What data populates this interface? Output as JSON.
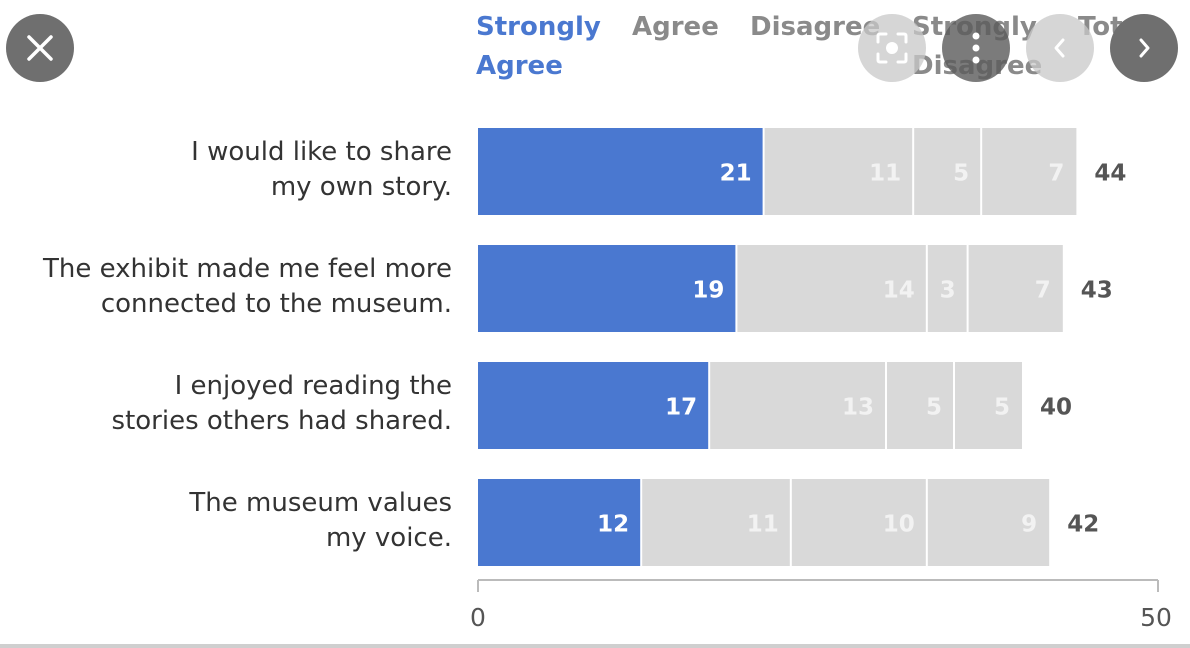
{
  "colors": {
    "strongly_agree": "#4a78d0",
    "other": "#d9d9d9",
    "legend_muted": "#8a8a8a",
    "label_on_blue": "#ffffff",
    "label_on_gray": "#f2f2f2",
    "total": "#555555"
  },
  "overlay": {
    "close_icon": "close-icon",
    "lens_icon": "lens-icon",
    "more_icon": "more-vert-icon",
    "prev_icon": "chevron-left-icon",
    "next_icon": "chevron-right-icon"
  },
  "chart_data": {
    "type": "bar",
    "orientation": "horizontal",
    "stacked": true,
    "categories": [
      "I would like to share\nmy own story.",
      "The exhibit made me feel more\nconnected to the museum.",
      "I enjoyed reading the\nstories others had shared.",
      "The museum values\nmy voice."
    ],
    "series": [
      {
        "name": "Strongly\nAgree",
        "values": [
          21,
          19,
          17,
          12
        ]
      },
      {
        "name": "Agree",
        "values": [
          11,
          14,
          13,
          11
        ]
      },
      {
        "name": "Disagree",
        "values": [
          5,
          3,
          5,
          10
        ]
      },
      {
        "name": "Strongly\nDisagree",
        "values": [
          7,
          7,
          5,
          9
        ]
      }
    ],
    "totals_label": "Total",
    "totals": [
      44,
      43,
      40,
      42
    ],
    "xlim": [
      0,
      50
    ],
    "x_ticks": [
      "0",
      "50"
    ],
    "legend_position": "top",
    "grid": false
  }
}
